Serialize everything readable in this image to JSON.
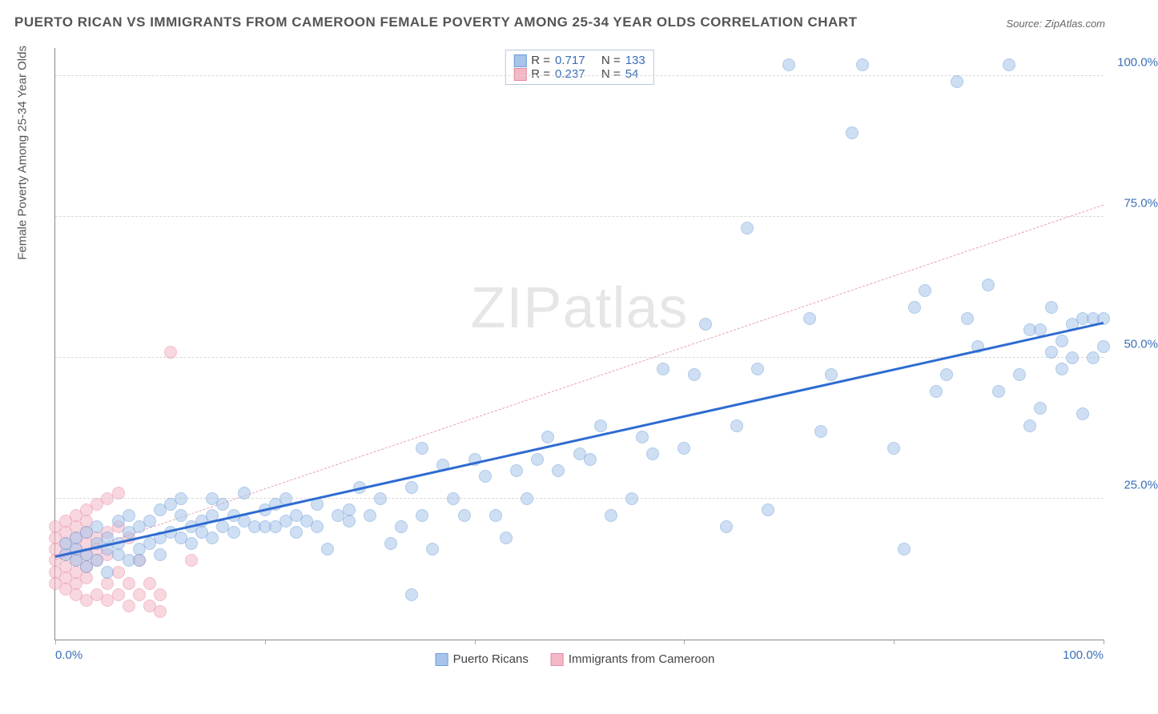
{
  "title": "PUERTO RICAN VS IMMIGRANTS FROM CAMEROON FEMALE POVERTY AMONG 25-34 YEAR OLDS CORRELATION CHART",
  "source": "Source: ZipAtlas.com",
  "watermark_a": "ZIP",
  "watermark_b": "atlas",
  "chart": {
    "type": "scatter",
    "y_label": "Female Poverty Among 25-34 Year Olds",
    "xlim": [
      0,
      100
    ],
    "ylim": [
      0,
      105
    ],
    "x_ticks": [
      0,
      20,
      40,
      60,
      80,
      100
    ],
    "x_tick_labels": {
      "0": "0.0%",
      "100": "100.0%"
    },
    "y_ticks": [
      25,
      50,
      75,
      100
    ],
    "y_tick_labels": {
      "25": "25.0%",
      "50": "50.0%",
      "75": "75.0%",
      "100": "100.0%"
    },
    "background_color": "#ffffff",
    "grid_color": "#d8d8d8",
    "axis_color": "#888888",
    "tick_label_color": "#3a6fb7",
    "title_color": "#555555",
    "title_fontsize": 17,
    "label_fontsize": 15,
    "marker_radius": 8,
    "marker_opacity": 0.55,
    "series": {
      "puerto_ricans": {
        "label": "Puerto Ricans",
        "color_fill": "#a7c4ea",
        "color_stroke": "#6f9fd8",
        "R": "0.717",
        "N": "133",
        "trend": {
          "x1": 0,
          "y1": 14.5,
          "x2": 100,
          "y2": 56,
          "color": "#2e6bd0",
          "width": 3,
          "style": "solid"
        },
        "points": [
          [
            1,
            15
          ],
          [
            1,
            17
          ],
          [
            2,
            14
          ],
          [
            2,
            16
          ],
          [
            2,
            18
          ],
          [
            3,
            15
          ],
          [
            3,
            19
          ],
          [
            3,
            13
          ],
          [
            4,
            14
          ],
          [
            4,
            17
          ],
          [
            4,
            20
          ],
          [
            5,
            12
          ],
          [
            5,
            16
          ],
          [
            5,
            18
          ],
          [
            6,
            15
          ],
          [
            6,
            17
          ],
          [
            6,
            21
          ],
          [
            7,
            14
          ],
          [
            7,
            19
          ],
          [
            7,
            22
          ],
          [
            8,
            16
          ],
          [
            8,
            20
          ],
          [
            8,
            14
          ],
          [
            9,
            17
          ],
          [
            9,
            21
          ],
          [
            10,
            18
          ],
          [
            10,
            23
          ],
          [
            10,
            15
          ],
          [
            11,
            19
          ],
          [
            11,
            24
          ],
          [
            12,
            18
          ],
          [
            12,
            22
          ],
          [
            12,
            25
          ],
          [
            13,
            20
          ],
          [
            13,
            17
          ],
          [
            14,
            21
          ],
          [
            14,
            19
          ],
          [
            15,
            22
          ],
          [
            15,
            18
          ],
          [
            15,
            25
          ],
          [
            16,
            20
          ],
          [
            16,
            24
          ],
          [
            17,
            19
          ],
          [
            17,
            22
          ],
          [
            18,
            21
          ],
          [
            18,
            26
          ],
          [
            19,
            20
          ],
          [
            20,
            20
          ],
          [
            20,
            23
          ],
          [
            21,
            24
          ],
          [
            21,
            20
          ],
          [
            22,
            21
          ],
          [
            22,
            25
          ],
          [
            23,
            19
          ],
          [
            23,
            22
          ],
          [
            24,
            21
          ],
          [
            25,
            24
          ],
          [
            25,
            20
          ],
          [
            26,
            16
          ],
          [
            27,
            22
          ],
          [
            28,
            23
          ],
          [
            28,
            21
          ],
          [
            29,
            27
          ],
          [
            30,
            22
          ],
          [
            31,
            25
          ],
          [
            32,
            17
          ],
          [
            33,
            20
          ],
          [
            34,
            27
          ],
          [
            35,
            34
          ],
          [
            35,
            22
          ],
          [
            36,
            16
          ],
          [
            37,
            31
          ],
          [
            38,
            25
          ],
          [
            39,
            22
          ],
          [
            40,
            32
          ],
          [
            41,
            29
          ],
          [
            42,
            22
          ],
          [
            43,
            18
          ],
          [
            44,
            30
          ],
          [
            45,
            25
          ],
          [
            46,
            32
          ],
          [
            47,
            36
          ],
          [
            48,
            30
          ],
          [
            50,
            33
          ],
          [
            51,
            32
          ],
          [
            52,
            38
          ],
          [
            53,
            22
          ],
          [
            55,
            25
          ],
          [
            56,
            36
          ],
          [
            57,
            33
          ],
          [
            58,
            48
          ],
          [
            60,
            34
          ],
          [
            61,
            47
          ],
          [
            62,
            56
          ],
          [
            64,
            20
          ],
          [
            65,
            38
          ],
          [
            66,
            73
          ],
          [
            67,
            48
          ],
          [
            68,
            23
          ],
          [
            70,
            102
          ],
          [
            72,
            57
          ],
          [
            73,
            37
          ],
          [
            74,
            47
          ],
          [
            76,
            90
          ],
          [
            77,
            102
          ],
          [
            80,
            34
          ],
          [
            81,
            16
          ],
          [
            82,
            59
          ],
          [
            83,
            62
          ],
          [
            84,
            44
          ],
          [
            85,
            47
          ],
          [
            86,
            99
          ],
          [
            87,
            57
          ],
          [
            88,
            52
          ],
          [
            89,
            63
          ],
          [
            90,
            44
          ],
          [
            91,
            102
          ],
          [
            92,
            47
          ],
          [
            93,
            55
          ],
          [
            93,
            38
          ],
          [
            94,
            55
          ],
          [
            94,
            41
          ],
          [
            95,
            51
          ],
          [
            95,
            59
          ],
          [
            96,
            53
          ],
          [
            96,
            48
          ],
          [
            97,
            56
          ],
          [
            97,
            50
          ],
          [
            98,
            57
          ],
          [
            98,
            40
          ],
          [
            99,
            57
          ],
          [
            99,
            50
          ],
          [
            100,
            57
          ],
          [
            100,
            52
          ],
          [
            34,
            8
          ]
        ]
      },
      "immigrants_cameroon": {
        "label": "Immigrants from Cameroon",
        "color_fill": "#f4b8c6",
        "color_stroke": "#e68aa3",
        "R": "0.237",
        "N": "54",
        "trend": {
          "x1": 0,
          "y1": 14,
          "x2": 100,
          "y2": 77,
          "color": "#e8a0b0",
          "width": 1.5,
          "style": "dash"
        },
        "points": [
          [
            0,
            14
          ],
          [
            0,
            16
          ],
          [
            0,
            18
          ],
          [
            0,
            12
          ],
          [
            0,
            20
          ],
          [
            0,
            10
          ],
          [
            1,
            15
          ],
          [
            1,
            17
          ],
          [
            1,
            13
          ],
          [
            1,
            19
          ],
          [
            1,
            11
          ],
          [
            1,
            21
          ],
          [
            1,
            9
          ],
          [
            2,
            16
          ],
          [
            2,
            14
          ],
          [
            2,
            18
          ],
          [
            2,
            12
          ],
          [
            2,
            20
          ],
          [
            2,
            10
          ],
          [
            2,
            22
          ],
          [
            2,
            8
          ],
          [
            3,
            17
          ],
          [
            3,
            15
          ],
          [
            3,
            19
          ],
          [
            3,
            13
          ],
          [
            3,
            21
          ],
          [
            3,
            11
          ],
          [
            3,
            23
          ],
          [
            3,
            7
          ],
          [
            4,
            18
          ],
          [
            4,
            16
          ],
          [
            4,
            14
          ],
          [
            4,
            24
          ],
          [
            4,
            8
          ],
          [
            5,
            19
          ],
          [
            5,
            15
          ],
          [
            5,
            10
          ],
          [
            5,
            25
          ],
          [
            5,
            7
          ],
          [
            6,
            20
          ],
          [
            6,
            12
          ],
          [
            6,
            8
          ],
          [
            6,
            26
          ],
          [
            7,
            18
          ],
          [
            7,
            10
          ],
          [
            7,
            6
          ],
          [
            8,
            14
          ],
          [
            8,
            8
          ],
          [
            9,
            10
          ],
          [
            9,
            6
          ],
          [
            10,
            8
          ],
          [
            10,
            5
          ],
          [
            11,
            51
          ],
          [
            13,
            14
          ]
        ]
      }
    },
    "legend_stats": {
      "r_label": "R =",
      "n_label": "N ="
    }
  }
}
